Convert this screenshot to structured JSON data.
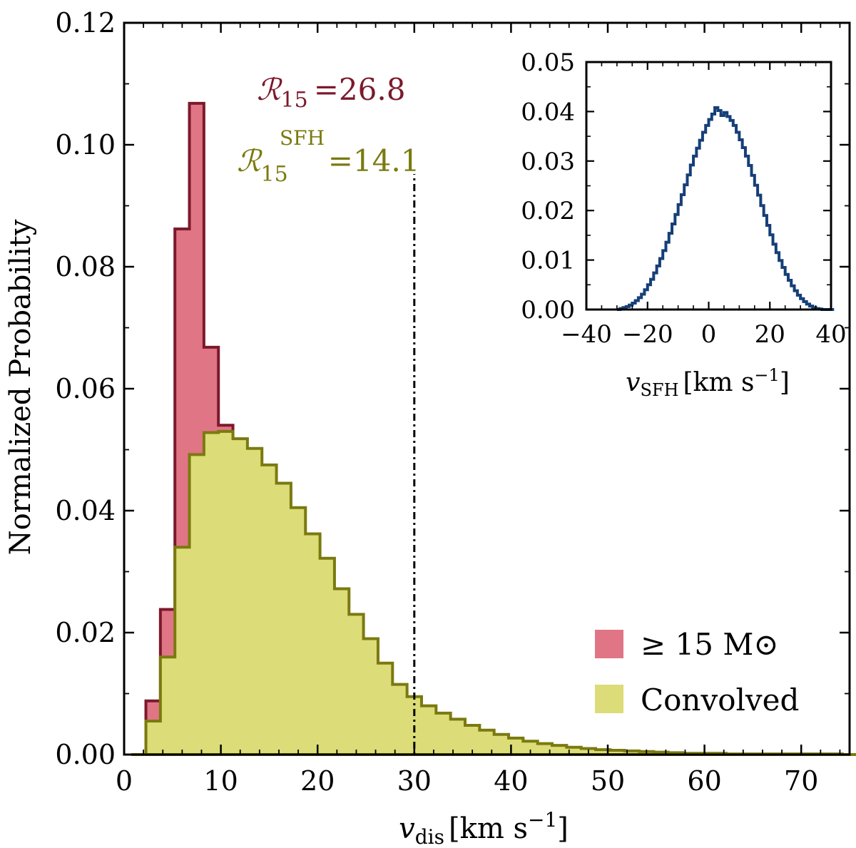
{
  "chart_data": [
    {
      "type": "histogram",
      "xlabel": "v_dis [km s^-1]",
      "xlabel_parts": {
        "var": "v",
        "sub": "dis",
        "unit": "[km s",
        "exp": "−1",
        "close": "]"
      },
      "ylabel": "Normalized Probability",
      "xlim": [
        0,
        75
      ],
      "ylim": [
        0,
        0.12
      ],
      "xticks": [
        0,
        10,
        20,
        30,
        40,
        50,
        60,
        70
      ],
      "xtick_labels": [
        "0",
        "10",
        "20",
        "30",
        "40",
        "50",
        "60",
        "70"
      ],
      "yticks": [
        0,
        0.02,
        0.04,
        0.06,
        0.08,
        0.1,
        0.12
      ],
      "ytick_labels": [
        "0.00",
        "0.02",
        "0.04",
        "0.06",
        "0.08",
        "0.10",
        "0.12"
      ],
      "bin_edges_start": 0.75,
      "bin_width": 1.5,
      "vline_x": 30,
      "series": [
        {
          "name": "≥ 15 M⊙",
          "fill": "#e07585",
          "edge": "#7b1a2c",
          "values": [
            0.0,
            0.0088,
            0.0238,
            0.0862,
            0.1068,
            0.0668,
            0.054,
            0.0455,
            0.041,
            0.0362,
            0.0312,
            0.0278,
            0.024,
            0.02,
            0.0165,
            0.0135,
            0.0108,
            0.009,
            0.0072,
            0.0058,
            0.0046,
            0.0037,
            0.0031,
            0.0026,
            0.0022,
            0.0018,
            0.0015,
            0.0012,
            0.001,
            0.0008,
            0.0006,
            0.0005,
            0.0004,
            0.0003,
            0.0003,
            0.0002,
            0.0002,
            0.0001,
            0.0001,
            0.0001,
            0.0001,
            0.0,
            0.0,
            0.0,
            0.0,
            0.0,
            0.0,
            0.0,
            0.0,
            0.0
          ]
        },
        {
          "name": "Convolved",
          "fill": "#dcdc78",
          "edge": "#7a7a10",
          "values": [
            0.0,
            0.0055,
            0.016,
            0.034,
            0.0492,
            0.0528,
            0.053,
            0.0518,
            0.0502,
            0.0475,
            0.0445,
            0.0405,
            0.0362,
            0.0322,
            0.0272,
            0.023,
            0.019,
            0.015,
            0.0115,
            0.0095,
            0.008,
            0.0068,
            0.0058,
            0.0048,
            0.004,
            0.0033,
            0.0027,
            0.0022,
            0.0018,
            0.0015,
            0.0012,
            0.001,
            0.0008,
            0.0007,
            0.0006,
            0.0005,
            0.0004,
            0.0003,
            0.0002,
            0.0002,
            0.0002,
            0.0001,
            0.0001,
            0.0001,
            0.0001,
            0.0001,
            0.0001,
            0.0001,
            0.0001,
            0.0
          ]
        }
      ],
      "annotations": [
        {
          "id": "r15",
          "symbol": "ℛ",
          "sub": "15",
          "sup": "",
          "value": "=26.8",
          "color": "#7b1a2c"
        },
        {
          "id": "r15sfh",
          "symbol": "ℛ",
          "sub": "15",
          "sup": "SFH",
          "value": "=14.1",
          "color": "#7a7a10"
        }
      ],
      "legend": {
        "position": "bottom-right",
        "entries": [
          "≥ 15 M⊙",
          "Convolved"
        ]
      }
    },
    {
      "type": "histogram-step",
      "role": "inset",
      "position": "top-right",
      "xlabel": "v_SFH [km s^-1]",
      "xlabel_parts": {
        "var": "v",
        "sub": "SFH",
        "unit": "[km s",
        "exp": "−1",
        "close": "]"
      },
      "xlim": [
        -40,
        40
      ],
      "ylim": [
        0,
        0.05
      ],
      "xticks": [
        -40,
        -20,
        0,
        20,
        40
      ],
      "xtick_labels": [
        "−40",
        "−20",
        "0",
        "20",
        "40"
      ],
      "yticks": [
        0,
        0.01,
        0.02,
        0.03,
        0.04,
        0.05
      ],
      "ytick_labels": [
        "0.00",
        "0.01",
        "0.02",
        "0.03",
        "0.04",
        "0.05"
      ],
      "line_color": "#163f78",
      "x_start": -30,
      "x_step": 1,
      "values": [
        0.0,
        0.0002,
        0.0004,
        0.0006,
        0.0009,
        0.0013,
        0.0018,
        0.0024,
        0.0031,
        0.004,
        0.005,
        0.0061,
        0.0074,
        0.0088,
        0.0103,
        0.0119,
        0.0136,
        0.0154,
        0.0173,
        0.0192,
        0.0212,
        0.0232,
        0.0252,
        0.0272,
        0.0292,
        0.031,
        0.0326,
        0.0342,
        0.0358,
        0.0372,
        0.0384,
        0.0395,
        0.0408,
        0.0402,
        0.0392,
        0.0398,
        0.039,
        0.0382,
        0.0372,
        0.0358,
        0.0343,
        0.0327,
        0.031,
        0.0291,
        0.0271,
        0.0251,
        0.0231,
        0.021,
        0.019,
        0.017,
        0.0151,
        0.0132,
        0.0115,
        0.0099,
        0.0085,
        0.0071,
        0.0059,
        0.0048,
        0.0038,
        0.0029,
        0.0022,
        0.0016,
        0.0011,
        0.0007,
        0.0004,
        0.0002,
        0.0001,
        0.0,
        0.0,
        0.0,
        0.0
      ]
    }
  ]
}
